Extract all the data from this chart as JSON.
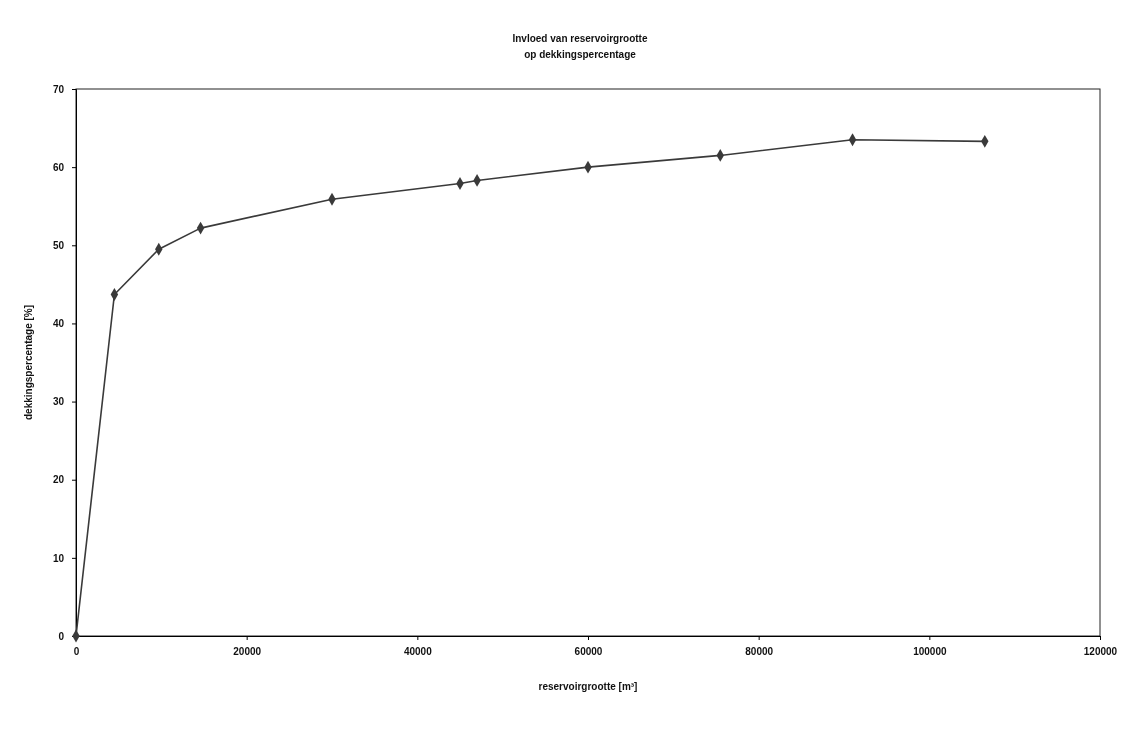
{
  "chart_data": {
    "type": "line",
    "title": "Invloed van reservoirgrootte\nop dekkingspercentage",
    "xlabel": "reservoirgrootte [m³]",
    "ylabel": "dekkingspercentage [%]",
    "x": [
      0,
      4500,
      9700,
      14600,
      30000,
      45000,
      47000,
      60000,
      75500,
      91000,
      106500
    ],
    "series": [
      {
        "color": "#3a3a3a",
        "values": [
          0,
          43.7,
          49.5,
          52.2,
          55.9,
          57.9,
          58.3,
          60.0,
          61.5,
          63.5,
          63.3
        ]
      }
    ],
    "xlim": [
      0,
      120000
    ],
    "xticks": [
      0,
      20000,
      40000,
      60000,
      80000,
      100000,
      120000
    ],
    "ylim": [
      0,
      70
    ],
    "yticks": [
      0,
      10,
      20,
      30,
      40,
      50,
      60,
      70
    ],
    "grid": false,
    "marker": "diamond",
    "line_style": "solid"
  }
}
